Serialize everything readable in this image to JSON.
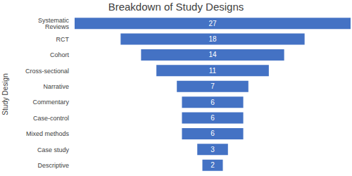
{
  "chart_data": {
    "type": "bar",
    "title": "Breakdown of Study Designs",
    "y_label": "Study Design",
    "categories": [
      "Systematic Reviews",
      "RCT",
      "Cohort",
      "Cross-sectional",
      "Narrative",
      "Commentary",
      "Case-control",
      "Mixed methods",
      "Case study",
      "Descriptive"
    ],
    "values": [
      27,
      18,
      14,
      11,
      7,
      6,
      6,
      6,
      3,
      2
    ],
    "color": "#4472c4",
    "orientation": "horizontal",
    "data_labels": true,
    "tick_labels": "y",
    "grid": false
  }
}
